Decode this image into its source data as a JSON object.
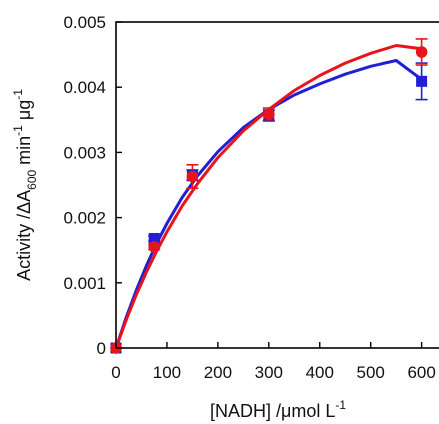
{
  "chart_data": {
    "type": "scatter",
    "title": "",
    "xlabel": "[NADH] /μmol L",
    "xlabel_sup": "-1",
    "ylabel_parts": [
      {
        "text": "Activity /ΔA",
        "kind": "normal"
      },
      {
        "text": "600",
        "kind": "sub"
      },
      {
        "text": " min",
        "kind": "normal"
      },
      {
        "text": "-1",
        "kind": "sup"
      },
      {
        "text": " μg",
        "kind": "normal"
      },
      {
        "text": "-1",
        "kind": "sup"
      }
    ],
    "xlim": [
      0,
      640
    ],
    "ylim": [
      0,
      0.005
    ],
    "xticks": [
      0,
      100,
      200,
      300,
      400,
      500,
      600
    ],
    "xtick_labels": [
      "0",
      "100",
      "200",
      "300",
      "400",
      "500",
      "600"
    ],
    "yticks": [
      0,
      0.001,
      0.002,
      0.003,
      0.004,
      0.005
    ],
    "ytick_labels": [
      "0",
      "0.001",
      "0.002",
      "0.003",
      "0.004",
      "0.005"
    ],
    "grid": false,
    "series": [
      {
        "color": "#1f1fd6",
        "marker": "square",
        "x": [
          0,
          75,
          150,
          300,
          600
        ],
        "y": [
          0,
          0.00168,
          0.00265,
          0.00357,
          0.00409
        ],
        "err": [
          0,
          4e-05,
          8e-05,
          8e-05,
          0.00028
        ],
        "fit_x": [
          0,
          20,
          40,
          60,
          80,
          100,
          130,
          160,
          200,
          250,
          300,
          350,
          400,
          450,
          500,
          550,
          600
        ],
        "fit_y": [
          0,
          0.00047,
          0.00089,
          0.00127,
          0.00161,
          0.00191,
          0.00231,
          0.00264,
          0.00301,
          0.00338,
          0.00366,
          0.00388,
          0.00405,
          0.0042,
          0.00432,
          0.00441,
          0.00412
        ]
      },
      {
        "color": "#e8141c",
        "marker": "circle",
        "x": [
          0,
          75,
          150,
          300,
          600
        ],
        "y": [
          0,
          0.00155,
          0.00263,
          0.00358,
          0.00454
        ],
        "err": [
          0,
          4e-05,
          0.00018,
          0.0001,
          0.0002
        ],
        "fit_x": [
          0,
          20,
          40,
          60,
          80,
          100,
          130,
          160,
          200,
          250,
          300,
          350,
          400,
          450,
          500,
          550,
          600
        ],
        "fit_y": [
          0,
          0.00043,
          0.00082,
          0.00117,
          0.00149,
          0.00178,
          0.00218,
          0.00252,
          0.00292,
          0.00333,
          0.00366,
          0.00395,
          0.00418,
          0.00437,
          0.00452,
          0.00464,
          0.00459
        ]
      }
    ]
  }
}
